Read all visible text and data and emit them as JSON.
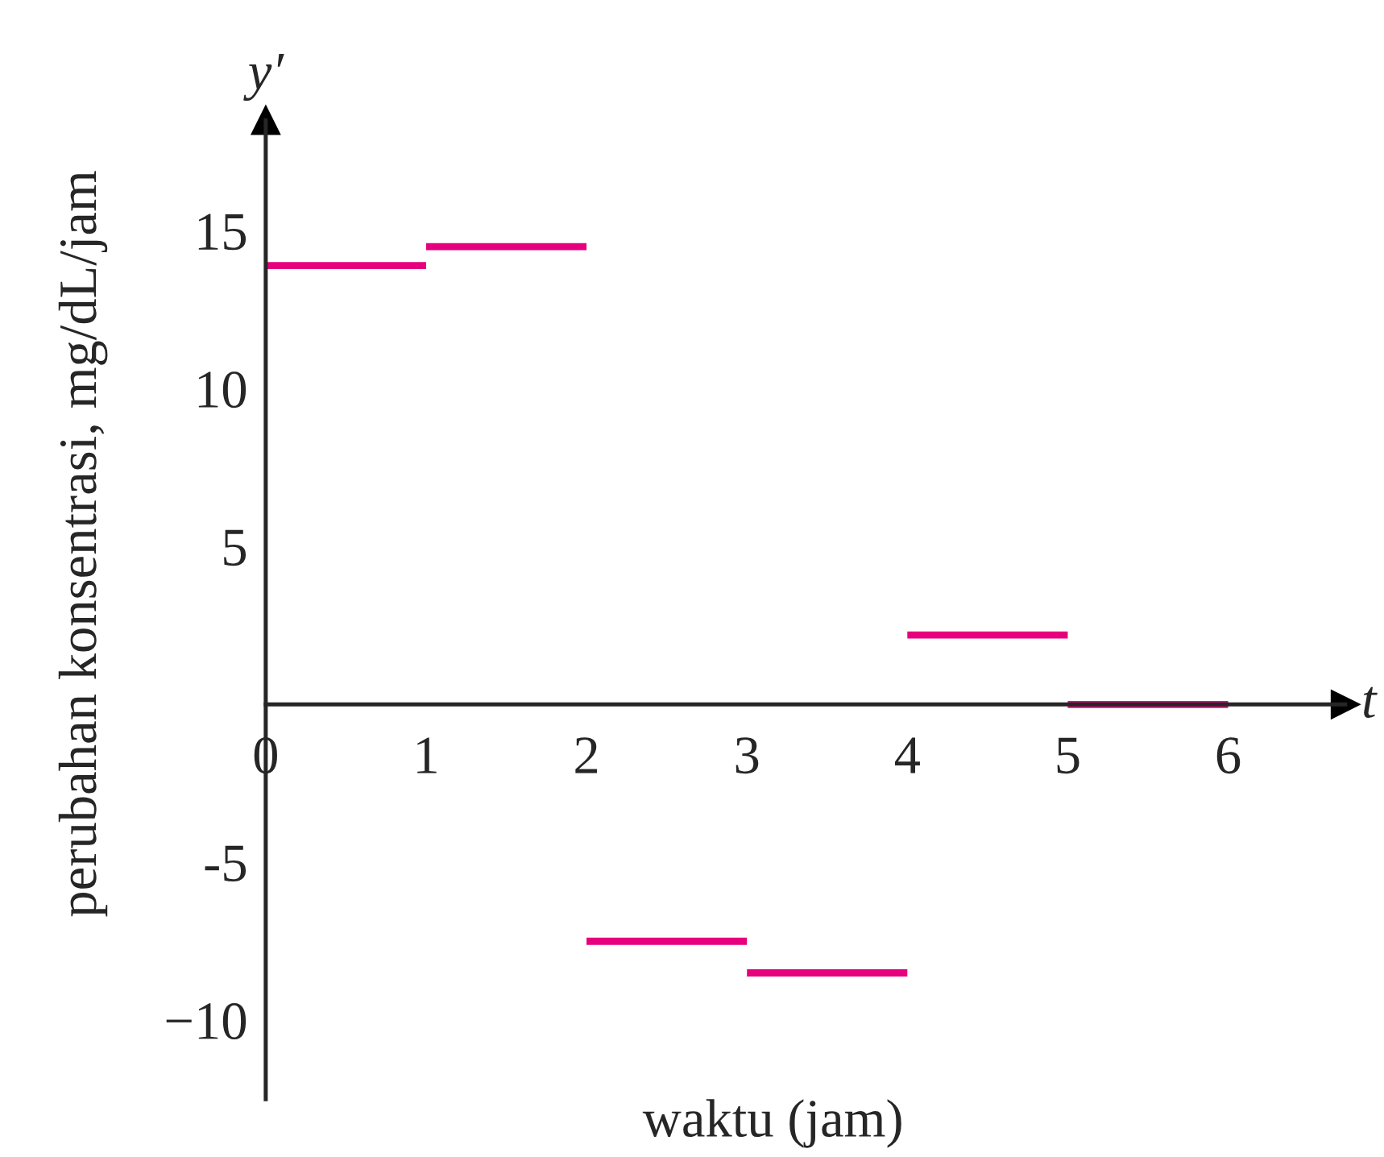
{
  "chart_data": {
    "type": "line",
    "xlabel": "waktu (jam)",
    "ylabel": "perubahan konsentrasi, mg/dL/jam",
    "annotations": [
      "y′",
      "t"
    ],
    "xlim": [
      0,
      6.73
    ],
    "ylim": [
      -12.5,
      18.5
    ],
    "xticks": [
      0,
      1,
      2,
      3,
      4,
      5,
      6
    ],
    "yticks": [
      {
        "value": -10,
        "label": "−10"
      },
      {
        "value": -5,
        "label": "-5"
      },
      5,
      10,
      15
    ],
    "marker": "none",
    "line_style": "solid",
    "series": [
      {
        "color": "#e6007e",
        "x": [
          0,
          1
        ],
        "values": [
          13.9,
          13.9
        ]
      },
      {
        "color": "#e6007e",
        "x": [
          1,
          2
        ],
        "values": [
          14.5,
          14.5
        ]
      },
      {
        "color": "#e6007e",
        "x": [
          2,
          3
        ],
        "values": [
          -7.5,
          -7.5
        ]
      },
      {
        "color": "#e6007e",
        "x": [
          3,
          4
        ],
        "values": [
          -8.5,
          -8.5
        ]
      },
      {
        "color": "#e6007e",
        "x": [
          4,
          5
        ],
        "values": [
          2.2,
          2.2
        ]
      },
      {
        "color": "#e6007e",
        "x": [
          5,
          6
        ],
        "values": [
          0,
          0
        ]
      }
    ]
  }
}
